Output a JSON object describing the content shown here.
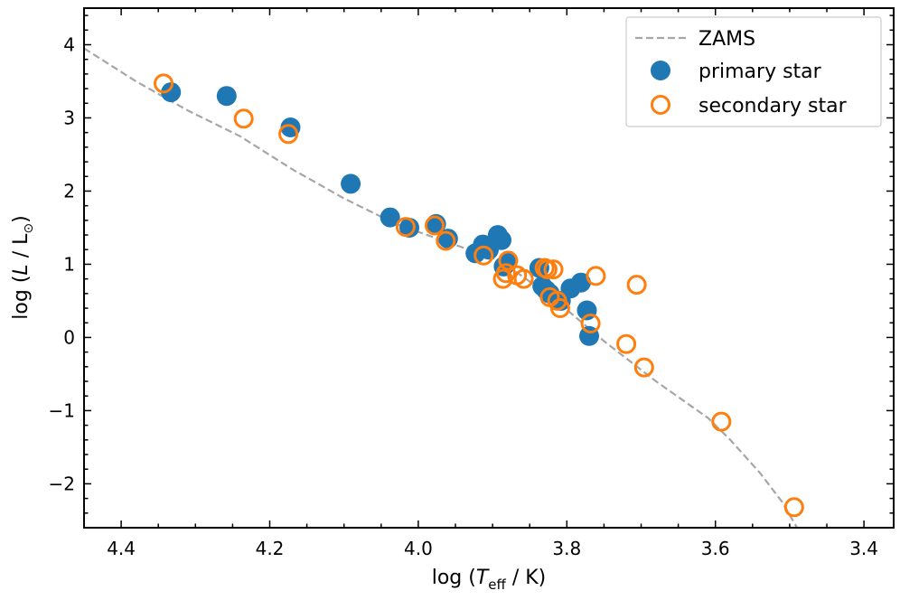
{
  "chart_data": {
    "type": "scatter",
    "title": "",
    "xlabel_prefix": "log (",
    "xlabel_var": "T",
    "xlabel_sub": "eff",
    "xlabel_suffix": " / K)",
    "ylabel_prefix": "log (",
    "ylabel_var": "L",
    "ylabel_mid": " / L",
    "ylabel_sun": "⊙",
    "ylabel_suffix": ")",
    "xlim": [
      4.45,
      3.36
    ],
    "ylim": [
      -2.6,
      4.5
    ],
    "x_ticks": [
      4.4,
      4.2,
      4.0,
      3.8,
      3.6,
      3.4
    ],
    "x_tick_labels": [
      "4.4",
      "4.2",
      "4.0",
      "3.8",
      "3.6",
      "3.4"
    ],
    "y_ticks": [
      -2,
      -1,
      0,
      1,
      2,
      3,
      4
    ],
    "y_tick_labels": [
      "−2",
      "−1",
      "0",
      "1",
      "2",
      "3",
      "4"
    ],
    "grid": false,
    "legend_position": "top-right",
    "legend": [
      "ZAMS",
      "primary star",
      "secondary star"
    ],
    "colors": {
      "zams": "#a6a6a6",
      "primary": "#1f77b4",
      "secondary": "#ff7f0e"
    },
    "series": [
      {
        "name": "ZAMS",
        "style": "dashed-line",
        "x": [
          4.45,
          4.38,
          4.31,
          4.24,
          4.17,
          4.1,
          4.03,
          3.96,
          3.89,
          3.82,
          3.75,
          3.68,
          3.61,
          3.58,
          3.54,
          3.51,
          3.49
        ],
        "y": [
          3.95,
          3.5,
          3.1,
          2.75,
          2.3,
          1.9,
          1.55,
          1.3,
          1.05,
          0.55,
          -0.05,
          -0.6,
          -1.1,
          -1.4,
          -1.85,
          -2.25,
          -2.6
        ]
      },
      {
        "name": "primary star",
        "style": "filled-circle",
        "x": [
          4.333,
          4.258,
          4.172,
          4.091,
          4.038,
          4.012,
          3.976,
          3.96,
          3.923,
          3.913,
          3.905,
          3.893,
          3.888,
          3.885,
          3.88,
          3.837,
          3.833,
          3.828,
          3.823,
          3.808,
          3.795,
          3.781,
          3.773,
          3.77
        ],
        "y": [
          3.35,
          3.3,
          2.87,
          2.1,
          1.64,
          1.5,
          1.55,
          1.35,
          1.15,
          1.27,
          1.2,
          1.4,
          1.33,
          0.97,
          1.02,
          0.95,
          0.7,
          0.65,
          0.6,
          0.5,
          0.67,
          0.75,
          0.37,
          0.02
        ]
      },
      {
        "name": "secondary star",
        "style": "open-circle",
        "x": [
          4.343,
          4.235,
          4.175,
          4.017,
          3.978,
          3.963,
          3.912,
          3.886,
          3.882,
          3.879,
          3.867,
          3.858,
          3.83,
          3.826,
          3.823,
          3.818,
          3.813,
          3.809,
          3.768,
          3.761,
          3.72,
          3.706,
          3.696,
          3.592,
          3.494
        ],
        "y": [
          3.47,
          2.99,
          2.78,
          1.51,
          1.53,
          1.32,
          1.12,
          0.8,
          0.88,
          1.05,
          0.85,
          0.8,
          0.95,
          0.93,
          0.55,
          0.93,
          0.5,
          0.4,
          0.19,
          0.84,
          -0.09,
          0.72,
          -0.41,
          -1.15,
          -2.32
        ]
      }
    ]
  }
}
